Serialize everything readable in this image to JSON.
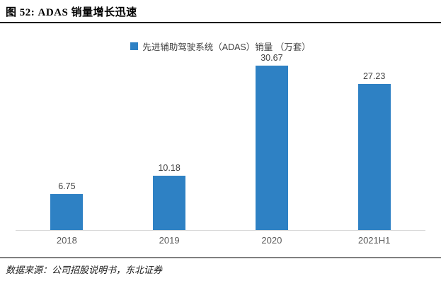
{
  "page": {
    "background": "#ffffff"
  },
  "header": {
    "title": "图 52: ADAS 销量增长迅速"
  },
  "chart_data": {
    "type": "bar",
    "title": "",
    "xlabel": "",
    "ylabel": "",
    "legend": [
      "先进辅助驾驶系统（ADAS）销量 （万套）"
    ],
    "legend_position": "top-center",
    "categories": [
      "2018",
      "2019",
      "2020",
      "2021H1"
    ],
    "values": [
      6.75,
      10.18,
      30.67,
      27.23
    ],
    "value_labels": [
      "6.75",
      "10.18",
      "30.67",
      "27.23"
    ],
    "ylim": [
      0,
      33
    ],
    "grid": false,
    "bar_color": "#2E81C4",
    "axis_line_color": "#D9D9D9"
  },
  "footer": {
    "source": "数据来源：公司招股说明书，东北证券"
  }
}
